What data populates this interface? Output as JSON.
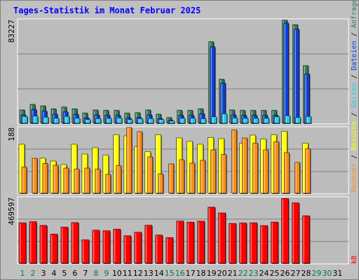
{
  "title": "Tages-Statistik im Monat Februar 2025",
  "colors": {
    "anfragen": "#2e7d4f",
    "dateien": "#0a3fd8",
    "seiten": "#22c8ee",
    "besuche": "#ffff00",
    "rechner": "#ff8c14",
    "kb": "#ff0000",
    "plot_bg": "#bcbcbc",
    "weekend_label": "#007a3d"
  },
  "legend": {
    "anfragen": "Anfragen",
    "dateien": "Dateien",
    "seiten": "Seiten",
    "besuche": "Besuche",
    "rechner": "Rechner",
    "kb": "kB",
    "sep": "/"
  },
  "axis_max": {
    "top": "83227",
    "mid": "188",
    "bottom": "469597"
  },
  "chart_data": {
    "type": "bar",
    "days": [
      "1",
      "2",
      "3",
      "4",
      "5",
      "6",
      "7",
      "8",
      "9",
      "10",
      "11",
      "12",
      "13",
      "14",
      "15",
      "16",
      "17",
      "18",
      "19",
      "20",
      "21",
      "22",
      "23",
      "24",
      "25",
      "26",
      "27",
      "28",
      "29",
      "30",
      "31"
    ],
    "weekend_days": [
      "1",
      "2",
      "8",
      "9",
      "15",
      "16",
      "22",
      "23",
      "29",
      "30"
    ],
    "data_days": 28,
    "series": [
      {
        "name": "Anfragen",
        "panel": "top",
        "ymax": 83227,
        "values": [
          10700,
          15200,
          14000,
          11600,
          13100,
          11600,
          8200,
          10700,
          10400,
          10400,
          8200,
          8500,
          10700,
          7300,
          4600,
          10400,
          10400,
          11600,
          65500,
          35400,
          10700,
          10400,
          10400,
          10400,
          10400,
          82900,
          79200,
          46300
        ]
      },
      {
        "name": "Dateien",
        "panel": "top",
        "ymax": 83227,
        "values": [
          6700,
          11000,
          9800,
          7300,
          9100,
          7300,
          4300,
          6700,
          6400,
          6400,
          4300,
          4600,
          6700,
          3700,
          2400,
          6400,
          6400,
          7600,
          61500,
          32300,
          6700,
          6400,
          6400,
          6400,
          6400,
          80500,
          75600,
          39600
        ]
      },
      {
        "name": "Seiten",
        "panel": "top",
        "ymax": 83227,
        "values": [
          5500,
          5800,
          4900,
          4000,
          5500,
          4000,
          3000,
          3700,
          4000,
          4300,
          3000,
          3700,
          3700,
          3000,
          1800,
          4000,
          4000,
          3700,
          5200,
          7600,
          4300,
          4000,
          4000,
          4000,
          5200,
          6100,
          4600,
          5500
        ]
      },
      {
        "name": "Besuche",
        "panel": "mid",
        "ymax": 188,
        "values": [
          140,
          0,
          100,
          92,
          82,
          140,
          112,
          130,
          109,
          167,
          164,
          133,
          119,
          167,
          0,
          158,
          148,
          140,
          159,
          156,
          0,
          143,
          166,
          155,
          167,
          177,
          0,
          143
        ]
      },
      {
        "name": "Rechner",
        "panel": "mid",
        "ymax": 188,
        "values": [
          75,
          100,
          85,
          80,
          72,
          69,
          72,
          69,
          54,
          79,
          188,
          176,
          104,
          55,
          84,
          96,
          86,
          94,
          124,
          111,
          181,
          158,
          143,
          124,
          147,
          116,
          88,
          127
        ]
      },
      {
        "name": "kB",
        "panel": "bottom",
        "ymax": 469597,
        "values": [
          289000,
          297000,
          270000,
          208000,
          258000,
          290000,
          167000,
          236000,
          232000,
          243000,
          196000,
          221000,
          271000,
          201000,
          183000,
          301000,
          293000,
          300000,
          400000,
          359000,
          284000,
          287000,
          289000,
          269000,
          294000,
          462000,
          431000,
          339000
        ]
      }
    ]
  }
}
